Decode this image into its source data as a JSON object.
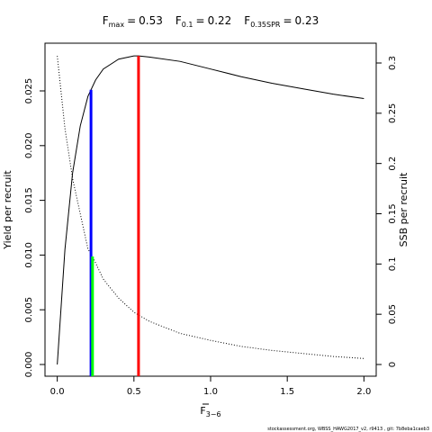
{
  "chart_data": {
    "type": "line",
    "title_parts": [
      {
        "symbol": "F",
        "subscript": "max",
        "operator": "=",
        "value": 0.53
      },
      {
        "symbol": "F",
        "subscript": "0.1",
        "operator": "=",
        "value": 0.22
      },
      {
        "symbol": "F",
        "subscript": "0.35SPR",
        "operator": "=",
        "value": 0.23
      }
    ],
    "xlabel": {
      "symbol": "F",
      "subscript": "3−6"
    },
    "ylabel": "Yield per recruit",
    "y2label": "SSB per recruit",
    "footer": "stockassessment.org, WBSS_HAWG2017_v2, r9413 , git: 7b8eba1caeb3",
    "xlim": [
      -0.08,
      2.08
    ],
    "xticks": [
      {
        "value": 0,
        "label": "0.0"
      },
      0.5,
      {
        "value": 1,
        "label": "1.0"
      },
      1.5,
      {
        "value": 2,
        "label": "2.0"
      }
    ],
    "ylim": [
      -0.00107,
      0.02936
    ],
    "yticks": [
      {
        "value": 0,
        "label": "0.000"
      },
      0.005,
      {
        "value": 0.01,
        "label": "0.010"
      },
      0.015,
      {
        "value": 0.02,
        "label": "0.020"
      },
      0.025
    ],
    "y2lim": [
      -0.01164,
      0.3197
    ],
    "y2ticks": [
      0,
      0.05,
      0.1,
      0.15,
      0.2,
      0.25,
      0.3
    ],
    "series": [
      {
        "color": "#000000",
        "dash": "solid",
        "x": [
          0,
          0.05,
          0.1,
          0.15,
          0.2,
          0.25,
          0.3,
          0.4,
          0.5,
          0.53,
          0.6,
          0.8,
          1.0,
          1.2,
          1.4,
          1.6,
          1.8,
          2.0
        ],
        "values": [
          0,
          0.0105,
          0.0175,
          0.0218,
          0.0245,
          0.026,
          0.027,
          0.0279,
          0.0282,
          0.0282,
          0.0281,
          0.0277,
          0.027,
          0.0263,
          0.0257,
          0.0252,
          0.0247,
          0.0243
        ]
      },
      {
        "color": "#000000",
        "dash": "dotted",
        "axis": "y2",
        "x": [
          0,
          0.05,
          0.1,
          0.15,
          0.2,
          0.23,
          0.3,
          0.4,
          0.5,
          0.6,
          0.8,
          1.0,
          1.2,
          1.4,
          1.6,
          1.8,
          2.0
        ],
        "values": [
          0.307,
          0.235,
          0.185,
          0.15,
          0.115,
          0.1075,
          0.085,
          0.066,
          0.052,
          0.043,
          0.031,
          0.024,
          0.018,
          0.014,
          0.011,
          0.008,
          0.006
        ]
      }
    ],
    "vlines": [
      {
        "color": "#ff0000",
        "x": 0.53,
        "value": 0.0282
      },
      {
        "color": "#0000ff",
        "x": 0.22,
        "value": 0.0251
      },
      {
        "color": "#00ff00",
        "x": 0.23,
        "value": 0.1075,
        "axis": "y2"
      }
    ]
  }
}
